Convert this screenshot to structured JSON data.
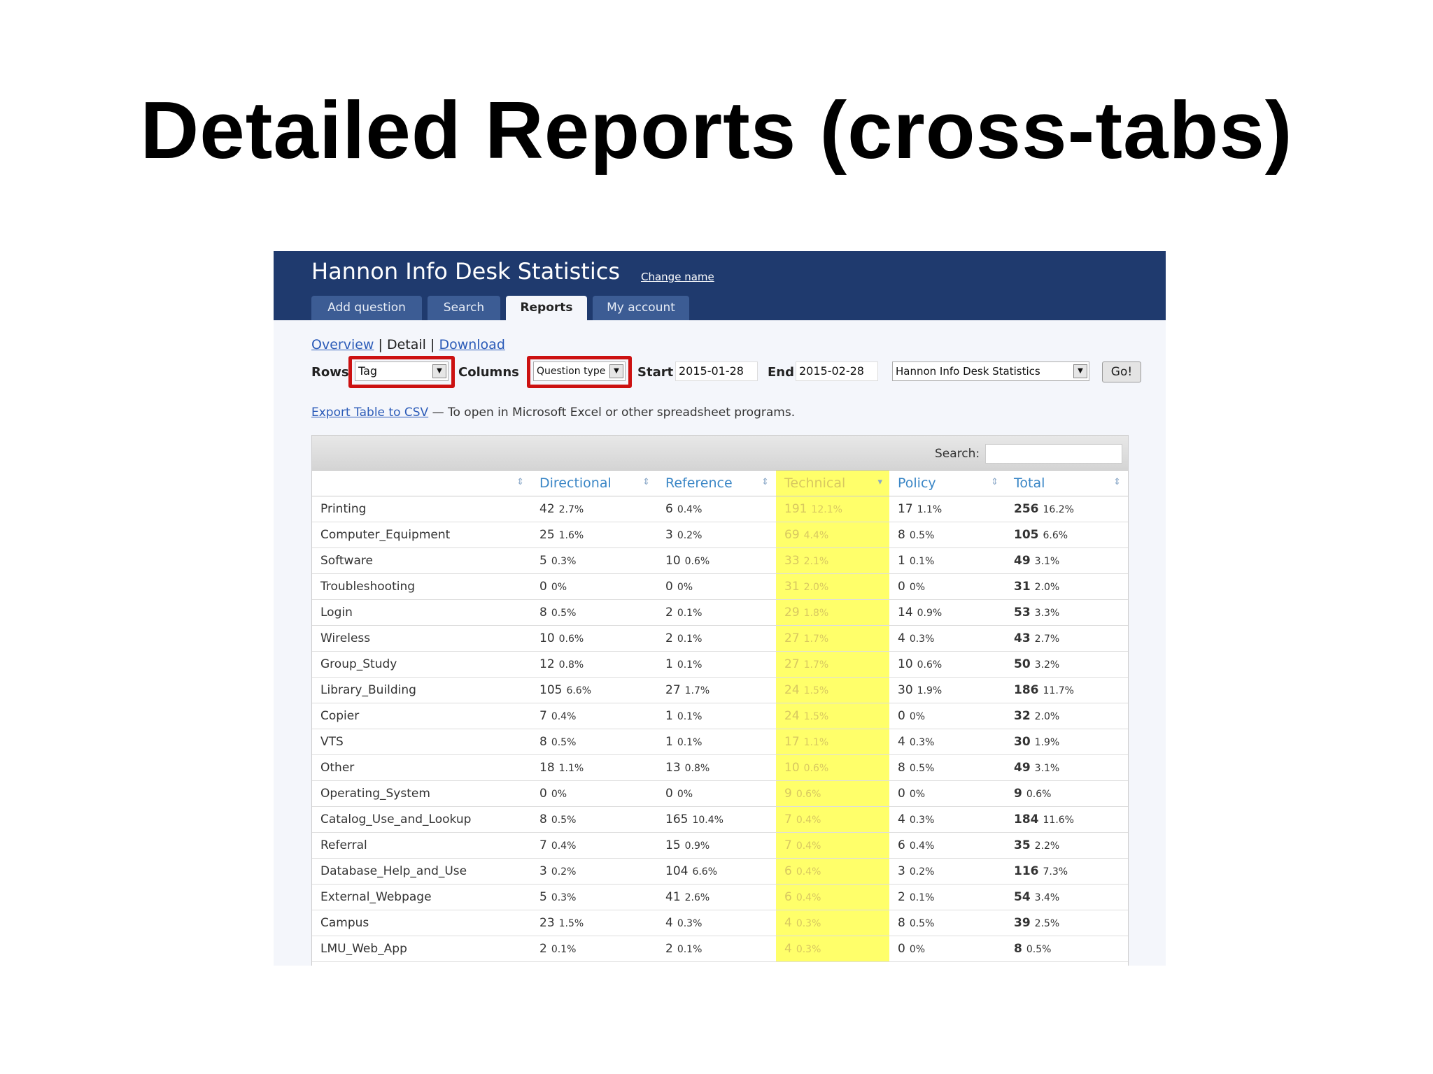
{
  "slide": {
    "title": "Detailed Reports (cross-tabs)"
  },
  "app": {
    "title": "Hannon Info Desk Statistics",
    "change_name": "Change name",
    "tabs": [
      "Add question",
      "Search",
      "Reports",
      "My account"
    ],
    "active_tab": "Reports"
  },
  "subnav": {
    "overview": "Overview",
    "detail": "Detail",
    "download": "Download",
    "sep": "|"
  },
  "controls": {
    "rows_label": "Rows",
    "rows_value": "Tag",
    "columns_label": "Columns",
    "columns_value": "Question type",
    "start_label": "Start",
    "start_value": "2015-01-28",
    "end_label": "End",
    "end_value": "2015-02-28",
    "desk_value": "Hannon Info Desk Statistics",
    "go_label": "Go!",
    "highlight_color": "#cc1111"
  },
  "export": {
    "link": "Export Table to CSV",
    "note": "— To open in Microsoft Excel or other spreadsheet programs."
  },
  "table": {
    "search_label": "Search:",
    "highlight_color": "#ffff6a",
    "columns": [
      "",
      "Directional",
      "Reference",
      "Technical",
      "Policy",
      "Total"
    ],
    "rows": [
      [
        "Printing",
        "42",
        "2.7%",
        "6",
        "0.4%",
        "191",
        "12.1%",
        "17",
        "1.1%",
        "256",
        "16.2%"
      ],
      [
        "Computer_Equipment",
        "25",
        "1.6%",
        "3",
        "0.2%",
        "69",
        "4.4%",
        "8",
        "0.5%",
        "105",
        "6.6%"
      ],
      [
        "Software",
        "5",
        "0.3%",
        "10",
        "0.6%",
        "33",
        "2.1%",
        "1",
        "0.1%",
        "49",
        "3.1%"
      ],
      [
        "Troubleshooting",
        "0",
        "0%",
        "0",
        "0%",
        "31",
        "2.0%",
        "0",
        "0%",
        "31",
        "2.0%"
      ],
      [
        "Login",
        "8",
        "0.5%",
        "2",
        "0.1%",
        "29",
        "1.8%",
        "14",
        "0.9%",
        "53",
        "3.3%"
      ],
      [
        "Wireless",
        "10",
        "0.6%",
        "2",
        "0.1%",
        "27",
        "1.7%",
        "4",
        "0.3%",
        "43",
        "2.7%"
      ],
      [
        "Group_Study",
        "12",
        "0.8%",
        "1",
        "0.1%",
        "27",
        "1.7%",
        "10",
        "0.6%",
        "50",
        "3.2%"
      ],
      [
        "Library_Building",
        "105",
        "6.6%",
        "27",
        "1.7%",
        "24",
        "1.5%",
        "30",
        "1.9%",
        "186",
        "11.7%"
      ],
      [
        "Copier",
        "7",
        "0.4%",
        "1",
        "0.1%",
        "24",
        "1.5%",
        "0",
        "0%",
        "32",
        "2.0%"
      ],
      [
        "VTS",
        "8",
        "0.5%",
        "1",
        "0.1%",
        "17",
        "1.1%",
        "4",
        "0.3%",
        "30",
        "1.9%"
      ],
      [
        "Other",
        "18",
        "1.1%",
        "13",
        "0.8%",
        "10",
        "0.6%",
        "8",
        "0.5%",
        "49",
        "3.1%"
      ],
      [
        "Operating_System",
        "0",
        "0%",
        "0",
        "0%",
        "9",
        "0.6%",
        "0",
        "0%",
        "9",
        "0.6%"
      ],
      [
        "Catalog_Use_and_Lookup",
        "8",
        "0.5%",
        "165",
        "10.4%",
        "7",
        "0.4%",
        "4",
        "0.3%",
        "184",
        "11.6%"
      ],
      [
        "Referral",
        "7",
        "0.4%",
        "15",
        "0.9%",
        "7",
        "0.4%",
        "6",
        "0.4%",
        "35",
        "2.2%"
      ],
      [
        "Database_Help_and_Use",
        "3",
        "0.2%",
        "104",
        "6.6%",
        "6",
        "0.4%",
        "3",
        "0.2%",
        "116",
        "7.3%"
      ],
      [
        "External_Webpage",
        "5",
        "0.3%",
        "41",
        "2.6%",
        "6",
        "0.4%",
        "2",
        "0.1%",
        "54",
        "3.4%"
      ],
      [
        "Campus",
        "23",
        "1.5%",
        "4",
        "0.3%",
        "4",
        "0.3%",
        "8",
        "0.5%",
        "39",
        "2.5%"
      ],
      [
        "LMU_Web_App",
        "2",
        "0.1%",
        "2",
        "0.1%",
        "4",
        "0.3%",
        "0",
        "0%",
        "8",
        "0.5%"
      ]
    ]
  }
}
